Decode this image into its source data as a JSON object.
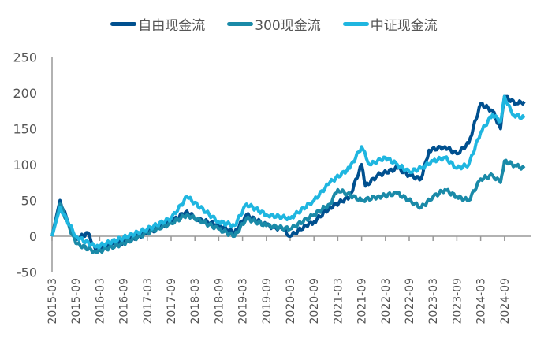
{
  "chart_data": {
    "type": "line",
    "ylim": [
      -50,
      250
    ],
    "yticks": [
      250,
      200,
      150,
      100,
      50,
      0,
      -50
    ],
    "xticks": [
      "2015-03",
      "2015-09",
      "2016-03",
      "2016-09",
      "2017-03",
      "2017-09",
      "2018-03",
      "2018-09",
      "2019-03",
      "2019-09",
      "2020-03",
      "2020-09",
      "2021-03",
      "2021-09",
      "2022-03",
      "2022-09",
      "2023-03",
      "2023-09",
      "2024-03",
      "2024-09"
    ],
    "xrange": [
      "2015-03",
      "2025-02"
    ],
    "legend": "top",
    "grid": false,
    "series": [
      {
        "name": "自由现金流",
        "color": "#00508f",
        "points": [
          [
            "2015-03",
            0
          ],
          [
            "2015-05",
            50
          ],
          [
            "2015-07",
            20
          ],
          [
            "2015-09",
            -5
          ],
          [
            "2015-12",
            5
          ],
          [
            "2016-02",
            -20
          ],
          [
            "2016-06",
            -12
          ],
          [
            "2016-09",
            -8
          ],
          [
            "2017-03",
            5
          ],
          [
            "2017-09",
            20
          ],
          [
            "2018-01",
            35
          ],
          [
            "2018-03",
            25
          ],
          [
            "2018-09",
            15
          ],
          [
            "2019-01",
            5
          ],
          [
            "2019-04",
            30
          ],
          [
            "2019-09",
            15
          ],
          [
            "2020-01",
            10
          ],
          [
            "2020-03",
            0
          ],
          [
            "2020-07",
            15
          ],
          [
            "2020-09",
            20
          ],
          [
            "2021-01",
            40
          ],
          [
            "2021-06",
            55
          ],
          [
            "2021-09",
            100
          ],
          [
            "2021-10",
            70
          ],
          [
            "2022-01",
            85
          ],
          [
            "2022-06",
            95
          ],
          [
            "2022-09",
            85
          ],
          [
            "2022-12",
            80
          ],
          [
            "2023-02",
            120
          ],
          [
            "2023-06",
            125
          ],
          [
            "2023-09",
            115
          ],
          [
            "2023-12",
            130
          ],
          [
            "2024-03",
            185
          ],
          [
            "2024-06",
            175
          ],
          [
            "2024-08",
            150
          ],
          [
            "2024-09",
            195
          ],
          [
            "2024-12",
            185
          ],
          [
            "2025-02",
            188
          ]
        ]
      },
      {
        "name": "300现金流",
        "color": "#1a8aa8",
        "points": [
          [
            "2015-03",
            0
          ],
          [
            "2015-05",
            45
          ],
          [
            "2015-09",
            -10
          ],
          [
            "2016-02",
            -22
          ],
          [
            "2016-09",
            -10
          ],
          [
            "2017-03",
            5
          ],
          [
            "2017-09",
            18
          ],
          [
            "2018-01",
            30
          ],
          [
            "2018-09",
            10
          ],
          [
            "2019-01",
            0
          ],
          [
            "2019-04",
            25
          ],
          [
            "2019-09",
            15
          ],
          [
            "2020-03",
            10
          ],
          [
            "2020-09",
            30
          ],
          [
            "2021-01",
            45
          ],
          [
            "2021-03",
            65
          ],
          [
            "2021-09",
            50
          ],
          [
            "2022-01",
            55
          ],
          [
            "2022-06",
            60
          ],
          [
            "2022-12",
            40
          ],
          [
            "2023-03",
            55
          ],
          [
            "2023-06",
            65
          ],
          [
            "2023-09",
            55
          ],
          [
            "2023-12",
            50
          ],
          [
            "2024-03",
            80
          ],
          [
            "2024-06",
            85
          ],
          [
            "2024-08",
            75
          ],
          [
            "2024-09",
            105
          ],
          [
            "2024-12",
            98
          ],
          [
            "2025-02",
            95
          ]
        ]
      },
      {
        "name": "中证现金流",
        "color": "#1fb6e0",
        "points": [
          [
            "2015-03",
            0
          ],
          [
            "2015-05",
            40
          ],
          [
            "2015-09",
            0
          ],
          [
            "2016-02",
            -15
          ],
          [
            "2016-09",
            -2
          ],
          [
            "2017-03",
            10
          ],
          [
            "2017-09",
            25
          ],
          [
            "2018-01",
            55
          ],
          [
            "2018-09",
            20
          ],
          [
            "2019-01",
            15
          ],
          [
            "2019-04",
            45
          ],
          [
            "2019-09",
            30
          ],
          [
            "2020-03",
            25
          ],
          [
            "2020-09",
            50
          ],
          [
            "2021-01",
            75
          ],
          [
            "2021-06",
            95
          ],
          [
            "2021-09",
            125
          ],
          [
            "2021-11",
            100
          ],
          [
            "2022-03",
            110
          ],
          [
            "2022-06",
            100
          ],
          [
            "2022-09",
            90
          ],
          [
            "2022-12",
            95
          ],
          [
            "2023-03",
            105
          ],
          [
            "2023-06",
            110
          ],
          [
            "2023-09",
            95
          ],
          [
            "2023-12",
            100
          ],
          [
            "2024-03",
            145
          ],
          [
            "2024-06",
            170
          ],
          [
            "2024-08",
            160
          ],
          [
            "2024-09",
            195
          ],
          [
            "2024-11",
            170
          ],
          [
            "2025-02",
            165
          ]
        ]
      }
    ]
  }
}
